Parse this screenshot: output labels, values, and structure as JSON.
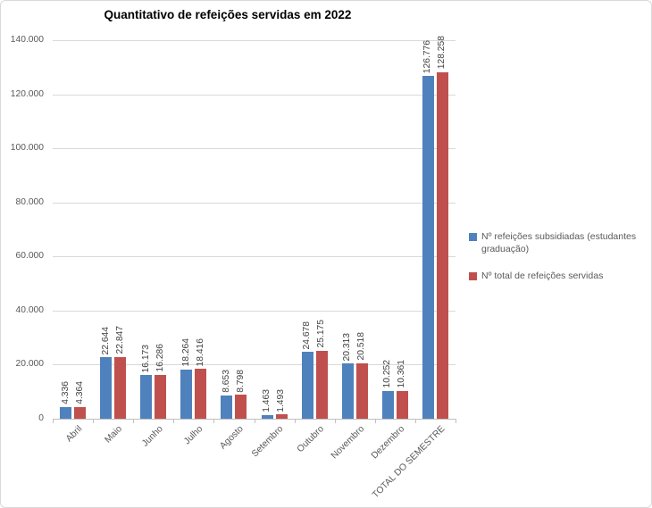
{
  "chart_data": {
    "type": "bar",
    "title": "Quantitativo de refeições servidas em 2022",
    "categories": [
      "Abril",
      "Maio",
      "Junho",
      "Julho",
      "Agosto",
      "Setembro",
      "Outubro",
      "Novembro",
      "Dezembro",
      "TOTAL DO SEMESTRE"
    ],
    "series": [
      {
        "name": "Nº refeições subsidiadas (estudantes graduação)",
        "color": "#4F81BD",
        "values": [
          4336,
          22644,
          16173,
          18264,
          8653,
          1463,
          24678,
          20313,
          10252,
          126776
        ]
      },
      {
        "name": "Nº total de refeições servidas",
        "color": "#C0504D",
        "values": [
          4364,
          22847,
          16286,
          18416,
          8798,
          1493,
          25175,
          20518,
          10361,
          128258
        ]
      }
    ],
    "xlabel": "",
    "ylabel": "",
    "ylim": [
      0,
      140000
    ],
    "ytick_step": 20000,
    "ytick_labels": [
      "0",
      "20.000",
      "40.000",
      "60.000",
      "80.000",
      "100.000",
      "120.000",
      "140.000"
    ],
    "grid": true,
    "data_labels": true,
    "data_label_rotation": 90,
    "x_label_rotation": 45,
    "legend_position": "right",
    "number_format": "thousands-dot"
  },
  "colors": {
    "series_blue": "#4F81BD",
    "series_red": "#C0504D",
    "gridline": "#D9D9D9",
    "axis_line": "#BFBFBF",
    "axis_text": "#595959",
    "data_label_text": "#404040",
    "title_text": "#000000",
    "frame_border": "#D9D9D9"
  }
}
